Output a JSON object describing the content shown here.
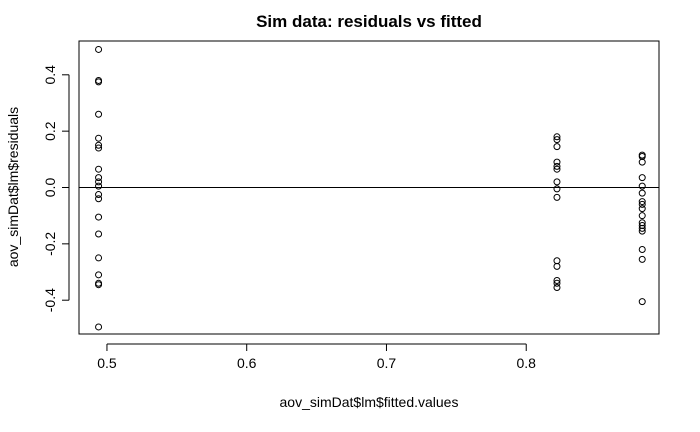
{
  "chart_data": {
    "type": "scatter",
    "title": "Sim data: residuals vs fitted",
    "xlabel": "aov_simDat$lm$fitted.values",
    "ylabel": "aov_simDat$lm$residuals",
    "xlim": [
      0.48,
      0.895
    ],
    "ylim": [
      -0.52,
      0.52
    ],
    "x_ticks": [
      0.5,
      0.6,
      0.7,
      0.8
    ],
    "x_tick_labels": [
      "0.5",
      "0.6",
      "0.7",
      "0.8"
    ],
    "y_ticks": [
      -0.4,
      -0.2,
      0.0,
      0.2,
      0.4
    ],
    "y_tick_labels": [
      "-0.4",
      "-0.2",
      "0.0",
      "0.2",
      "0.4"
    ],
    "reference_line_y": 0,
    "grid": false,
    "points": [
      {
        "x": 0.494,
        "y": 0.49
      },
      {
        "x": 0.494,
        "y": 0.38
      },
      {
        "x": 0.494,
        "y": 0.375
      },
      {
        "x": 0.494,
        "y": 0.26
      },
      {
        "x": 0.494,
        "y": 0.175
      },
      {
        "x": 0.494,
        "y": 0.15
      },
      {
        "x": 0.494,
        "y": 0.14
      },
      {
        "x": 0.494,
        "y": 0.065
      },
      {
        "x": 0.494,
        "y": 0.035
      },
      {
        "x": 0.494,
        "y": 0.02
      },
      {
        "x": 0.494,
        "y": 0.005
      },
      {
        "x": 0.494,
        "y": -0.025
      },
      {
        "x": 0.494,
        "y": -0.04
      },
      {
        "x": 0.494,
        "y": -0.105
      },
      {
        "x": 0.494,
        "y": -0.165
      },
      {
        "x": 0.494,
        "y": -0.25
      },
      {
        "x": 0.494,
        "y": -0.31
      },
      {
        "x": 0.494,
        "y": -0.34
      },
      {
        "x": 0.494,
        "y": -0.345
      },
      {
        "x": 0.494,
        "y": -0.495
      },
      {
        "x": 0.822,
        "y": 0.18
      },
      {
        "x": 0.822,
        "y": 0.17
      },
      {
        "x": 0.822,
        "y": 0.145
      },
      {
        "x": 0.822,
        "y": 0.09
      },
      {
        "x": 0.822,
        "y": 0.075
      },
      {
        "x": 0.822,
        "y": 0.065
      },
      {
        "x": 0.822,
        "y": 0.02
      },
      {
        "x": 0.822,
        "y": -0.005
      },
      {
        "x": 0.822,
        "y": -0.035
      },
      {
        "x": 0.822,
        "y": -0.26
      },
      {
        "x": 0.822,
        "y": -0.28
      },
      {
        "x": 0.822,
        "y": -0.33
      },
      {
        "x": 0.822,
        "y": -0.34
      },
      {
        "x": 0.822,
        "y": -0.355
      },
      {
        "x": 0.883,
        "y": 0.115
      },
      {
        "x": 0.883,
        "y": 0.11
      },
      {
        "x": 0.883,
        "y": 0.09
      },
      {
        "x": 0.883,
        "y": 0.035
      },
      {
        "x": 0.883,
        "y": 0.005
      },
      {
        "x": 0.883,
        "y": -0.02
      },
      {
        "x": 0.883,
        "y": -0.05
      },
      {
        "x": 0.883,
        "y": -0.06
      },
      {
        "x": 0.883,
        "y": -0.075
      },
      {
        "x": 0.883,
        "y": -0.1
      },
      {
        "x": 0.883,
        "y": -0.125
      },
      {
        "x": 0.883,
        "y": -0.135
      },
      {
        "x": 0.883,
        "y": -0.145
      },
      {
        "x": 0.883,
        "y": -0.155
      },
      {
        "x": 0.883,
        "y": -0.22
      },
      {
        "x": 0.883,
        "y": -0.255
      },
      {
        "x": 0.883,
        "y": -0.405
      }
    ]
  }
}
